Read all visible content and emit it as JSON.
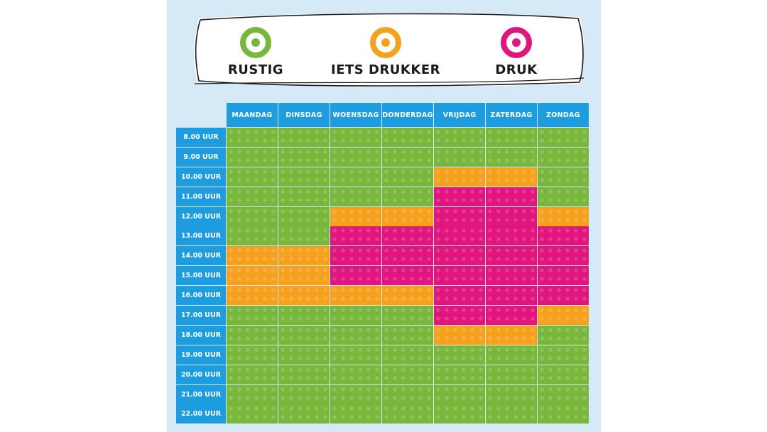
{
  "legend": {
    "items": [
      {
        "label": "RUSTIG",
        "color": "#79b73c"
      },
      {
        "label": "IETS DRUKKER",
        "color": "#f5a11e"
      },
      {
        "label": "DRUK",
        "color": "#e0157e"
      }
    ]
  },
  "schedule": {
    "days": [
      "MAANDAG",
      "DINSDAG",
      "WOENSDAG",
      "DONDERDAG",
      "VRIJDAG",
      "ZATERDAG",
      "ZONDAG"
    ],
    "times": [
      "8.00 UUR",
      "9.00 UUR",
      "10.00 UUR",
      "11.00 UUR",
      "12.00 UUR",
      "13.00 UUR",
      "14.00 UUR",
      "15.00 UUR",
      "16.00 UUR",
      "17.00 UUR",
      "18.00 UUR",
      "19.00 UUR",
      "20.00 UUR",
      "21.00 UUR",
      "22.00 UUR"
    ],
    "levels": [
      [
        "rustig",
        "rustig",
        "rustig",
        "rustig",
        "rustig",
        "rustig",
        "rustig"
      ],
      [
        "rustig",
        "rustig",
        "rustig",
        "rustig",
        "rustig",
        "rustig",
        "rustig"
      ],
      [
        "rustig",
        "rustig",
        "rustig",
        "rustig",
        "iets drukker",
        "iets drukker",
        "rustig"
      ],
      [
        "rustig",
        "rustig",
        "rustig",
        "rustig",
        "druk",
        "druk",
        "rustig"
      ],
      [
        "rustig",
        "rustig",
        "iets drukker",
        "iets drukker",
        "druk",
        "druk",
        "iets drukker"
      ],
      [
        "rustig",
        "rustig",
        "druk",
        "druk",
        "druk",
        "druk",
        "druk"
      ],
      [
        "iets drukker",
        "iets drukker",
        "druk",
        "druk",
        "druk",
        "druk",
        "druk"
      ],
      [
        "iets drukker",
        "iets drukker",
        "druk",
        "druk",
        "druk",
        "druk",
        "druk"
      ],
      [
        "iets drukker",
        "iets drukker",
        "iets drukker",
        "iets drukker",
        "druk",
        "druk",
        "druk"
      ],
      [
        "rustig",
        "rustig",
        "rustig",
        "rustig",
        "druk",
        "druk",
        "iets drukker"
      ],
      [
        "rustig",
        "rustig",
        "rustig",
        "rustig",
        "iets drukker",
        "iets drukker",
        "rustig"
      ],
      [
        "rustig",
        "rustig",
        "rustig",
        "rustig",
        "rustig",
        "rustig",
        "rustig"
      ],
      [
        "rustig",
        "rustig",
        "rustig",
        "rustig",
        "rustig",
        "rustig",
        "rustig"
      ],
      [
        "rustig",
        "rustig",
        "rustig",
        "rustig",
        "rustig",
        "rustig",
        "rustig"
      ],
      [
        "rustig",
        "rustig",
        "rustig",
        "rustig",
        "rustig",
        "rustig",
        "rustig"
      ]
    ]
  },
  "colors": {
    "rustig": "#79b73c",
    "iets_drukker": "#f5a11e",
    "druk": "#e0157e",
    "header": "#1e9ce0",
    "panel_background": "#d6e9f7"
  }
}
